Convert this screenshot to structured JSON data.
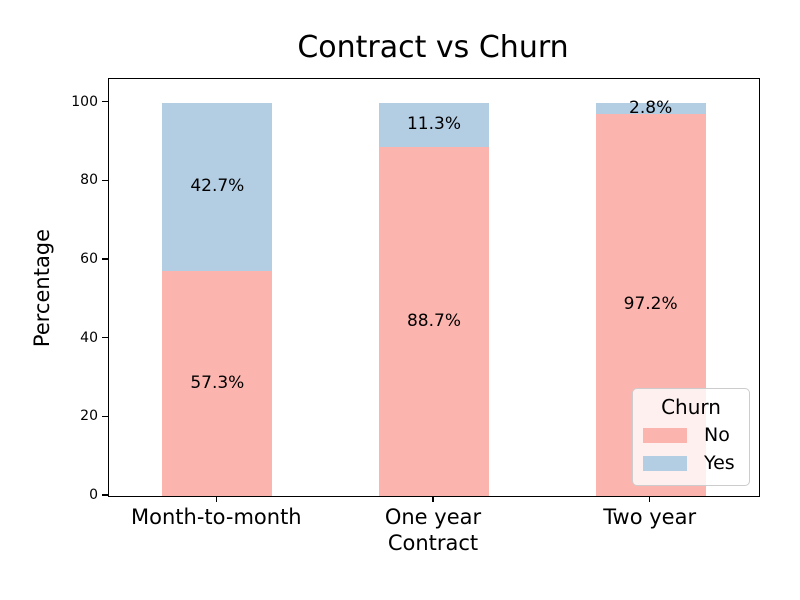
{
  "chart_data": {
    "type": "bar",
    "stacked": true,
    "title": "Contract vs Churn",
    "xlabel": "Contract",
    "ylabel": "Percentage",
    "categories": [
      "Month-to-month",
      "One year",
      "Two year"
    ],
    "series": [
      {
        "name": "No",
        "color": "#fbb4ae",
        "values": [
          57.3,
          88.7,
          97.2
        ]
      },
      {
        "name": "Yes",
        "color": "#b3cde3",
        "values": [
          42.7,
          11.3,
          2.8
        ]
      }
    ],
    "bar_labels": {
      "No": [
        "57.3%",
        "88.7%",
        "97.2%"
      ],
      "Yes": [
        "42.7%",
        "11.3%",
        "2.8%"
      ]
    },
    "ylim": [
      0,
      106
    ],
    "yticks": [
      0,
      20,
      40,
      60,
      80,
      100
    ],
    "grid": false,
    "legend": {
      "title": "Churn",
      "position": "lower right",
      "entries": [
        "No",
        "Yes"
      ]
    },
    "colors": {
      "spine": "#000000",
      "text": "#000000",
      "background": "#ffffff"
    }
  }
}
